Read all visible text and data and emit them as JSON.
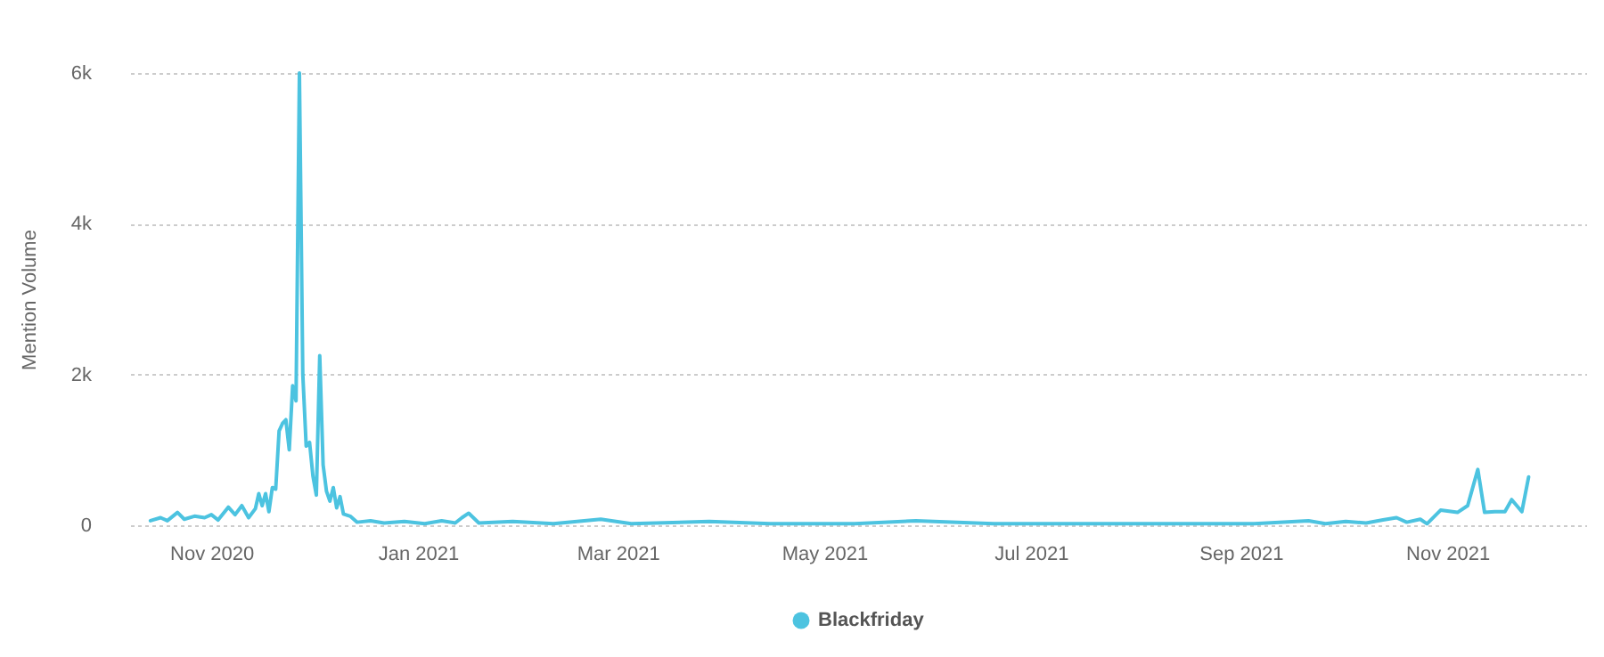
{
  "chart_data": {
    "type": "line",
    "ylabel": "Mention Volume",
    "x": [
      "2020-10-14",
      "2020-10-17",
      "2020-10-19",
      "2020-10-22",
      "2020-10-24",
      "2020-10-27",
      "2020-10-30",
      "2020-11-01",
      "2020-11-03",
      "2020-11-06",
      "2020-11-08",
      "2020-11-10",
      "2020-11-12",
      "2020-11-14",
      "2020-11-15",
      "2020-11-16",
      "2020-11-17",
      "2020-11-18",
      "2020-11-19",
      "2020-11-20",
      "2020-11-21",
      "2020-11-22",
      "2020-11-23",
      "2020-11-24",
      "2020-11-25",
      "2020-11-26",
      "2020-11-27",
      "2020-11-28",
      "2020-11-29",
      "2020-11-30",
      "2020-12-01",
      "2020-12-02",
      "2020-12-03",
      "2020-12-04",
      "2020-12-05",
      "2020-12-06",
      "2020-12-07",
      "2020-12-08",
      "2020-12-09",
      "2020-12-10",
      "2020-12-12",
      "2020-12-14",
      "2020-12-18",
      "2020-12-22",
      "2020-12-28",
      "2021-01-03",
      "2021-01-08",
      "2021-01-12",
      "2021-01-14",
      "2021-01-16",
      "2021-01-19",
      "2021-01-29",
      "2021-02-10",
      "2021-02-24",
      "2021-03-05",
      "2021-03-28",
      "2021-04-15",
      "2021-05-10",
      "2021-05-28",
      "2021-06-20",
      "2021-07-15",
      "2021-08-10",
      "2021-09-05",
      "2021-09-21",
      "2021-09-26",
      "2021-10-02",
      "2021-10-08",
      "2021-10-13",
      "2021-10-17",
      "2021-10-20",
      "2021-10-24",
      "2021-10-26",
      "2021-10-30",
      "2021-11-04",
      "2021-11-07",
      "2021-11-10",
      "2021-11-12",
      "2021-11-15",
      "2021-11-18",
      "2021-11-20",
      "2021-11-23",
      "2021-11-25"
    ],
    "series": [
      {
        "name": "Blackfriday",
        "color": "#4cc3e0",
        "values": [
          60,
          100,
          60,
          170,
          80,
          120,
          100,
          140,
          70,
          240,
          140,
          260,
          100,
          220,
          420,
          260,
          420,
          180,
          500,
          480,
          1250,
          1350,
          1400,
          1000,
          1850,
          1650,
          6000,
          2000,
          1050,
          1100,
          650,
          400,
          2250,
          800,
          450,
          320,
          500,
          230,
          380,
          150,
          120,
          40,
          60,
          30,
          50,
          20,
          60,
          30,
          100,
          160,
          30,
          50,
          20,
          80,
          20,
          50,
          20,
          20,
          60,
          20,
          20,
          20,
          20,
          60,
          20,
          50,
          30,
          70,
          100,
          40,
          80,
          20,
          200,
          170,
          260,
          740,
          170,
          180,
          180,
          340,
          180,
          640
        ]
      }
    ],
    "xlim": [
      "2020-10-08",
      "2021-12-12"
    ],
    "xticks": [
      {
        "value": "2020-11-01",
        "label": "Nov 2020"
      },
      {
        "value": "2021-01-01",
        "label": "Jan 2021"
      },
      {
        "value": "2021-03-01",
        "label": "Mar 2021"
      },
      {
        "value": "2021-05-01",
        "label": "May 2021"
      },
      {
        "value": "2021-07-01",
        "label": "Jul 2021"
      },
      {
        "value": "2021-09-01",
        "label": "Sep 2021"
      },
      {
        "value": "2021-11-01",
        "label": "Nov 2021"
      }
    ],
    "ylim": [
      0,
      6000
    ],
    "yticks": [
      0,
      {
        "value": 2000,
        "label": "2k"
      },
      {
        "value": 4000,
        "label": "4k"
      },
      {
        "value": 6000,
        "label": "6k"
      }
    ],
    "grid": "y",
    "legend": "bottom",
    "marker": "none",
    "line_style": "solid"
  }
}
